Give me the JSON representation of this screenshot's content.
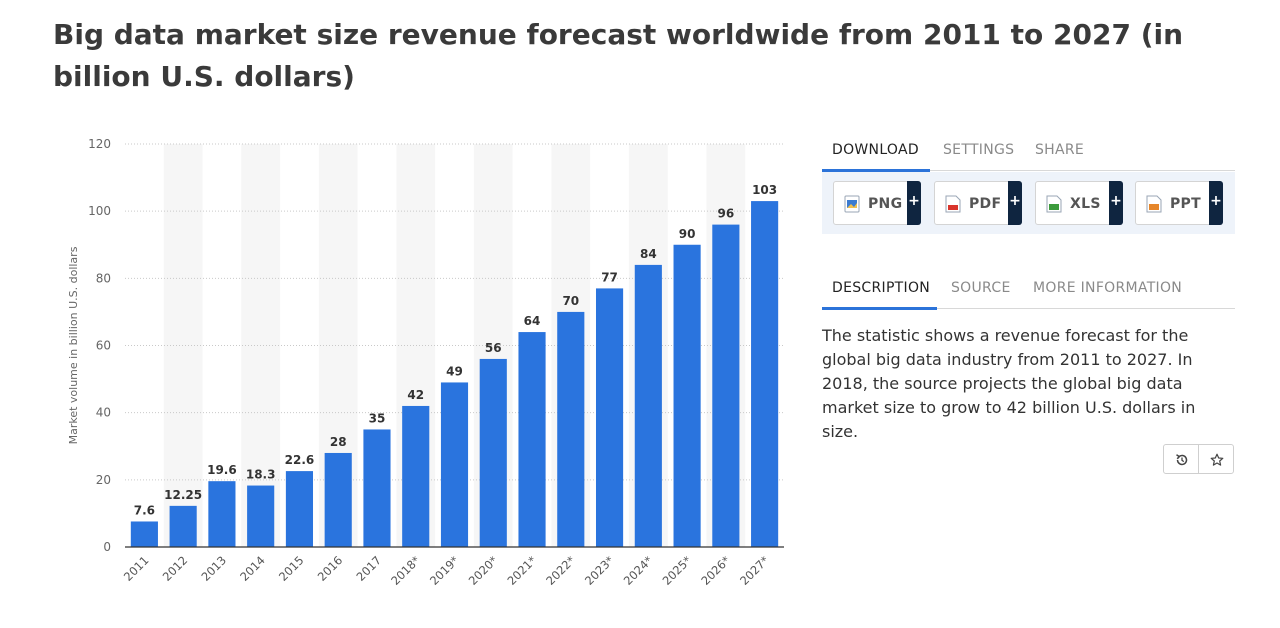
{
  "page": {
    "title": "Big data market size revenue forecast worldwide from 2011 to 2027 (in billion U.S. dollars)"
  },
  "download_tabs": [
    {
      "label": "DOWNLOAD",
      "active": true
    },
    {
      "label": "SETTINGS",
      "active": false
    },
    {
      "label": "SHARE",
      "active": false
    }
  ],
  "downloads": [
    {
      "label": "PNG",
      "icon": "png-file-icon",
      "color": "#3b7bd0"
    },
    {
      "label": "PDF",
      "icon": "pdf-file-icon",
      "color": "#d9342b"
    },
    {
      "label": "XLS",
      "icon": "xls-file-icon",
      "color": "#3c9b3c"
    },
    {
      "label": "PPT",
      "icon": "ppt-file-icon",
      "color": "#e6862a"
    }
  ],
  "download_plus": "+",
  "info_tabs": [
    {
      "label": "DESCRIPTION",
      "active": true
    },
    {
      "label": "SOURCE",
      "active": false
    },
    {
      "label": "MORE INFORMATION",
      "active": false
    }
  ],
  "description": "The statistic shows a revenue forecast for the global big data industry from 2011 to 2027. In 2018, the source projects the global big data market size to grow to 42 billion U.S. dollars in size.",
  "actions": [
    {
      "name": "history-icon"
    },
    {
      "name": "star-icon"
    }
  ],
  "chart_data": {
    "type": "bar",
    "categories": [
      "2011",
      "2012",
      "2013",
      "2014",
      "2015",
      "2016",
      "2017",
      "2018*",
      "2019*",
      "2020*",
      "2021*",
      "2022*",
      "2023*",
      "2024*",
      "2025*",
      "2026*",
      "2027*"
    ],
    "values": [
      7.6,
      12.25,
      19.6,
      18.3,
      22.6,
      28,
      35,
      42,
      49,
      56,
      64,
      70,
      77,
      84,
      90,
      96,
      103
    ],
    "value_labels": [
      "7.6",
      "12.25",
      "19.6",
      "18.3",
      "22.6",
      "28",
      "35",
      "42",
      "49",
      "56",
      "64",
      "70",
      "77",
      "84",
      "90",
      "96",
      "103"
    ],
    "ylabel": "Market volume in billion U.S. dollars",
    "ylim": [
      0,
      120
    ],
    "yticks": [
      0,
      20,
      40,
      60,
      80,
      100,
      120
    ],
    "grid": true,
    "bar_color": "#2a74de",
    "band_color": "#f6f6f6"
  }
}
